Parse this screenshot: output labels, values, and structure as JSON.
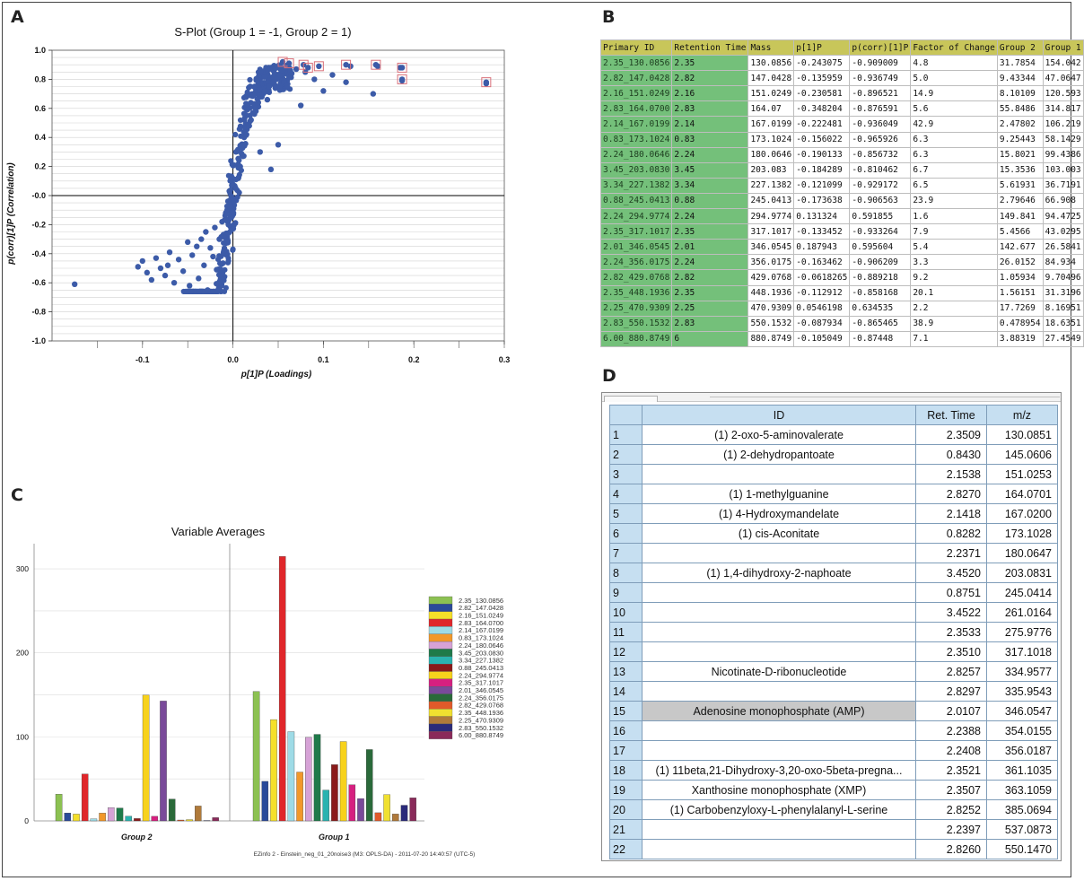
{
  "panels": {
    "A": "A",
    "B": "B",
    "C": "C",
    "D": "D"
  },
  "colors": {
    "scatter_point": "#3c5ba8",
    "highlight_box": "#d9707a",
    "table_header": "#c8c65a",
    "table_id_cell": "#74c07a",
    "grid_header": "#c6dff1",
    "selected_row": "#c8c8c8"
  },
  "chart_data": [
    {
      "type": "scatter",
      "title": "S-Plot (Group 1 = -1, Group 2 = 1)",
      "xlabel": "p[1]P (Loadings)",
      "ylabel": "p(corr)[1]P (Correlation)",
      "xlim": [
        -0.2,
        0.3
      ],
      "ylim": [
        -1.0,
        1.0
      ],
      "x_ticks": [
        "-0.1",
        "0.0",
        "0.1",
        "0.2",
        "0.3"
      ],
      "y_ticks": [
        "1.0",
        "0.8",
        "0.6",
        "0.4",
        "0.2",
        "-0.0",
        "-0.2",
        "-0.4",
        "-0.6",
        "-0.8",
        "-1.0"
      ],
      "grid": "horizontal",
      "points": [
        {
          "x": -0.175,
          "y": -0.61
        },
        {
          "x": -0.105,
          "y": -0.49
        },
        {
          "x": -0.1,
          "y": -0.45
        },
        {
          "x": -0.095,
          "y": -0.53
        },
        {
          "x": -0.09,
          "y": -0.58
        },
        {
          "x": -0.085,
          "y": -0.43
        },
        {
          "x": -0.08,
          "y": -0.5
        },
        {
          "x": -0.075,
          "y": -0.55
        },
        {
          "x": -0.072,
          "y": -0.48
        },
        {
          "x": -0.07,
          "y": -0.39
        },
        {
          "x": -0.065,
          "y": -0.6
        },
        {
          "x": -0.06,
          "y": -0.44
        },
        {
          "x": -0.055,
          "y": -0.52
        },
        {
          "x": -0.05,
          "y": -0.32
        },
        {
          "x": -0.048,
          "y": -0.62
        },
        {
          "x": -0.045,
          "y": -0.41
        },
        {
          "x": -0.04,
          "y": -0.35
        },
        {
          "x": -0.038,
          "y": -0.57
        },
        {
          "x": -0.035,
          "y": -0.3
        },
        {
          "x": -0.032,
          "y": -0.48
        },
        {
          "x": -0.03,
          "y": -0.25
        },
        {
          "x": -0.028,
          "y": -0.65
        },
        {
          "x": -0.025,
          "y": -0.36
        },
        {
          "x": -0.022,
          "y": -0.42
        },
        {
          "x": -0.02,
          "y": -0.22
        },
        {
          "x": -0.018,
          "y": -0.51
        },
        {
          "x": -0.015,
          "y": -0.3
        },
        {
          "x": -0.012,
          "y": -0.18
        },
        {
          "x": -0.01,
          "y": -0.38
        },
        {
          "x": -0.008,
          "y": -0.12
        },
        {
          "x": -0.005,
          "y": -0.2
        },
        {
          "x": -0.003,
          "y": -0.08
        },
        {
          "x": 0.0,
          "y": -0.02
        },
        {
          "x": 0.003,
          "y": 0.05
        },
        {
          "x": 0.006,
          "y": 0.12
        },
        {
          "x": 0.008,
          "y": 0.2
        },
        {
          "x": 0.01,
          "y": 0.28
        },
        {
          "x": 0.012,
          "y": 0.35
        },
        {
          "x": 0.015,
          "y": 0.42
        },
        {
          "x": 0.018,
          "y": 0.48
        },
        {
          "x": 0.02,
          "y": 0.52
        },
        {
          "x": 0.022,
          "y": 0.57
        },
        {
          "x": 0.025,
          "y": 0.6
        },
        {
          "x": 0.028,
          "y": 0.64
        },
        {
          "x": 0.03,
          "y": 0.3
        },
        {
          "x": 0.032,
          "y": 0.68
        },
        {
          "x": 0.035,
          "y": 0.72
        },
        {
          "x": 0.038,
          "y": 0.66
        },
        {
          "x": 0.04,
          "y": 0.75
        },
        {
          "x": 0.042,
          "y": 0.18
        },
        {
          "x": 0.045,
          "y": 0.78
        },
        {
          "x": 0.048,
          "y": 0.8
        },
        {
          "x": 0.05,
          "y": 0.35
        },
        {
          "x": 0.052,
          "y": 0.83
        },
        {
          "x": 0.055,
          "y": 0.86
        },
        {
          "x": 0.058,
          "y": 0.88
        },
        {
          "x": 0.06,
          "y": 0.76
        },
        {
          "x": 0.065,
          "y": 0.84
        },
        {
          "x": 0.07,
          "y": 0.87
        },
        {
          "x": 0.075,
          "y": 0.62
        },
        {
          "x": 0.08,
          "y": 0.85
        },
        {
          "x": 0.09,
          "y": 0.8
        },
        {
          "x": 0.1,
          "y": 0.72
        },
        {
          "x": 0.11,
          "y": 0.83
        },
        {
          "x": 0.125,
          "y": 0.78
        },
        {
          "x": 0.13,
          "y": 0.89
        },
        {
          "x": 0.155,
          "y": 0.7
        },
        {
          "x": 0.16,
          "y": 0.89
        },
        {
          "x": 0.185,
          "y": 0.88
        },
        {
          "x": 0.187,
          "y": 0.79
        },
        {
          "x": 0.28,
          "y": 0.77
        }
      ],
      "highlighted_points": [
        {
          "x": 0.055,
          "y": 0.92
        },
        {
          "x": 0.062,
          "y": 0.91
        },
        {
          "x": 0.078,
          "y": 0.9
        },
        {
          "x": 0.083,
          "y": 0.88
        },
        {
          "x": 0.095,
          "y": 0.89
        },
        {
          "x": 0.125,
          "y": 0.9
        },
        {
          "x": 0.158,
          "y": 0.9
        },
        {
          "x": 0.187,
          "y": 0.88
        },
        {
          "x": 0.187,
          "y": 0.8
        },
        {
          "x": 0.28,
          "y": 0.78
        }
      ]
    },
    {
      "type": "bar",
      "title": "Variable Averages",
      "categories": [
        "Group 2",
        "Group 1"
      ],
      "ylim": [
        0,
        330
      ],
      "y_ticks": [
        "300",
        "200",
        "100",
        "0"
      ],
      "footer": "EZinfo 2 - Einstein_neg_01_20noise3 (M3: OPLS-DA) - 2011-07-20 14:40:57 (UTC-5)",
      "series": [
        {
          "name": "2.35_130.0856",
          "color": "#8cc152",
          "values": [
            31.7854,
            154.042
          ]
        },
        {
          "name": "2.82_147.0428",
          "color": "#2a4a9a",
          "values": [
            9.43344,
            47.0647
          ]
        },
        {
          "name": "2.16_151.0249",
          "color": "#f5e02a",
          "values": [
            8.10109,
            120.593
          ]
        },
        {
          "name": "2.83_164.0700",
          "color": "#e0262a",
          "values": [
            55.8486,
            314.817
          ]
        },
        {
          "name": "2.14_167.0199",
          "color": "#9edbe6",
          "values": [
            2.47802,
            106.219
          ]
        },
        {
          "name": "0.83_173.1024",
          "color": "#f2982a",
          "values": [
            9.25443,
            58.1429
          ]
        },
        {
          "name": "2.24_180.0646",
          "color": "#d6a2d6",
          "values": [
            15.8021,
            99.4386
          ]
        },
        {
          "name": "3.45_203.0830",
          "color": "#1f7a4a",
          "values": [
            15.3536,
            103.003
          ]
        },
        {
          "name": "3.34_227.1382",
          "color": "#2ab3b0",
          "values": [
            5.61931,
            36.7191
          ]
        },
        {
          "name": "0.88_245.0413",
          "color": "#8a1a1a",
          "values": [
            2.79646,
            66.908
          ]
        },
        {
          "name": "2.24_294.9774",
          "color": "#f7d21c",
          "values": [
            149.841,
            94.4725
          ]
        },
        {
          "name": "2.35_317.1017",
          "color": "#d62080",
          "values": [
            5.4566,
            43.0295
          ]
        },
        {
          "name": "2.01_346.0545",
          "color": "#7a4a9a",
          "values": [
            142.677,
            26.5841
          ]
        },
        {
          "name": "2.24_356.0175",
          "color": "#2a6a3a",
          "values": [
            26.0152,
            84.934
          ]
        },
        {
          "name": "2.82_429.0768",
          "color": "#e05a2a",
          "values": [
            1.05934,
            9.70496
          ]
        },
        {
          "name": "2.35_448.1936",
          "color": "#f0e030",
          "values": [
            1.56151,
            31.3196
          ]
        },
        {
          "name": "2.25_470.9309",
          "color": "#b07a3a",
          "values": [
            17.7269,
            8.16951
          ]
        },
        {
          "name": "2.83_550.1532",
          "color": "#2a2a7a",
          "values": [
            0.478954,
            18.6351
          ]
        },
        {
          "name": "6.00_880.8749",
          "color": "#8a2a5a",
          "values": [
            3.88319,
            27.4549
          ]
        }
      ]
    }
  ],
  "tableB": {
    "headers": [
      "Primary ID",
      "Retention Time",
      "Mass",
      "p[1]P",
      "p(corr)[1]P",
      "Factor of Change",
      "Group 2",
      "Group 1"
    ],
    "rows": [
      [
        "2.35_130.0856",
        "2.35",
        "130.0856",
        "-0.243075",
        "-0.909009",
        "4.8",
        "31.7854",
        "154.042"
      ],
      [
        "2.82_147.0428",
        "2.82",
        "147.0428",
        "-0.135959",
        "-0.936749",
        "5.0",
        "9.43344",
        "47.0647"
      ],
      [
        "2.16_151.0249",
        "2.16",
        "151.0249",
        "-0.230581",
        "-0.896521",
        "14.9",
        "8.10109",
        "120.593"
      ],
      [
        "2.83_164.0700",
        "2.83",
        "164.07",
        "-0.348204",
        "-0.876591",
        "5.6",
        "55.8486",
        "314.817"
      ],
      [
        "2.14_167.0199",
        "2.14",
        "167.0199",
        "-0.222481",
        "-0.936049",
        "42.9",
        "2.47802",
        "106.219"
      ],
      [
        "0.83_173.1024",
        "0.83",
        "173.1024",
        "-0.156022",
        "-0.965926",
        "6.3",
        "9.25443",
        "58.1429"
      ],
      [
        "2.24_180.0646",
        "2.24",
        "180.0646",
        "-0.190133",
        "-0.856732",
        "6.3",
        "15.8021",
        "99.4386"
      ],
      [
        "3.45_203.0830",
        "3.45",
        "203.083",
        "-0.184289",
        "-0.810462",
        "6.7",
        "15.3536",
        "103.003"
      ],
      [
        "3.34_227.1382",
        "3.34",
        "227.1382",
        "-0.121099",
        "-0.929172",
        "6.5",
        "5.61931",
        "36.7191"
      ],
      [
        "0.88_245.0413",
        "0.88",
        "245.0413",
        "-0.173638",
        "-0.906563",
        "23.9",
        "2.79646",
        "66.908"
      ],
      [
        "2.24_294.9774",
        "2.24",
        "294.9774",
        "0.131324",
        "0.591855",
        "1.6",
        "149.841",
        "94.4725"
      ],
      [
        "2.35_317.1017",
        "2.35",
        "317.1017",
        "-0.133452",
        "-0.933264",
        "7.9",
        "5.4566",
        "43.0295"
      ],
      [
        "2.01_346.0545",
        "2.01",
        "346.0545",
        "0.187943",
        "0.595604",
        "5.4",
        "142.677",
        "26.5841"
      ],
      [
        "2.24_356.0175",
        "2.24",
        "356.0175",
        "-0.163462",
        "-0.906209",
        "3.3",
        "26.0152",
        "84.934"
      ],
      [
        "2.82_429.0768",
        "2.82",
        "429.0768",
        "-0.0618265",
        "-0.889218",
        "9.2",
        "1.05934",
        "9.70496"
      ],
      [
        "2.35_448.1936",
        "2.35",
        "448.1936",
        "-0.112912",
        "-0.858168",
        "20.1",
        "1.56151",
        "31.3196"
      ],
      [
        "2.25_470.9309",
        "2.25",
        "470.9309",
        "0.0546198",
        "0.634535",
        "2.2",
        "17.7269",
        "8.16951"
      ],
      [
        "2.83_550.1532",
        "2.83",
        "550.1532",
        "-0.087934",
        "-0.865465",
        "38.9",
        "0.478954",
        "18.6351"
      ],
      [
        "6.00_880.8749",
        "6",
        "880.8749",
        "-0.105049",
        "-0.87448",
        "7.1",
        "3.88319",
        "27.4549"
      ]
    ]
  },
  "tableD": {
    "headers": [
      "",
      "ID",
      "Ret. Time",
      "m/z"
    ],
    "selected_row": 15,
    "rows": [
      [
        "1",
        "(1) 2-oxo-5-aminovalerate",
        "2.3509",
        "130.0851"
      ],
      [
        "2",
        "(1) 2-dehydropantoate",
        "0.8430",
        "145.0606"
      ],
      [
        "3",
        "",
        "2.1538",
        "151.0253"
      ],
      [
        "4",
        "(1) 1-methylguanine",
        "2.8270",
        "164.0701"
      ],
      [
        "5",
        "(1) 4-Hydroxymandelate",
        "2.1418",
        "167.0200"
      ],
      [
        "6",
        "(1) cis-Aconitate",
        "0.8282",
        "173.1028"
      ],
      [
        "7",
        "",
        "2.2371",
        "180.0647"
      ],
      [
        "8",
        "(1) 1,4-dihydroxy-2-naphoate",
        "3.4520",
        "203.0831"
      ],
      [
        "9",
        "",
        "0.8751",
        "245.0414"
      ],
      [
        "10",
        "",
        "3.4522",
        "261.0164"
      ],
      [
        "11",
        "",
        "2.3533",
        "275.9776"
      ],
      [
        "12",
        "",
        "2.3510",
        "317.1018"
      ],
      [
        "13",
        "Nicotinate-D-ribonucleotide",
        "2.8257",
        "334.9577"
      ],
      [
        "14",
        "",
        "2.8297",
        "335.9543"
      ],
      [
        "15",
        "Adenosine monophosphate (AMP)",
        "2.0107",
        "346.0547"
      ],
      [
        "16",
        "",
        "2.2388",
        "354.0155"
      ],
      [
        "17",
        "",
        "2.2408",
        "356.0187"
      ],
      [
        "18",
        "(1) 11beta,21-Dihydroxy-3,20-oxo-5beta-pregna...",
        "2.3521",
        "361.1035"
      ],
      [
        "19",
        "Xanthosine monophosphate (XMP)",
        "2.3507",
        "363.1059"
      ],
      [
        "20",
        "(1) Carbobenzyloxy-L-phenylalanyl-L-serine",
        "2.8252",
        "385.0694"
      ],
      [
        "21",
        "",
        "2.2397",
        "537.0873"
      ],
      [
        "22",
        "",
        "2.8260",
        "550.1470"
      ]
    ]
  }
}
